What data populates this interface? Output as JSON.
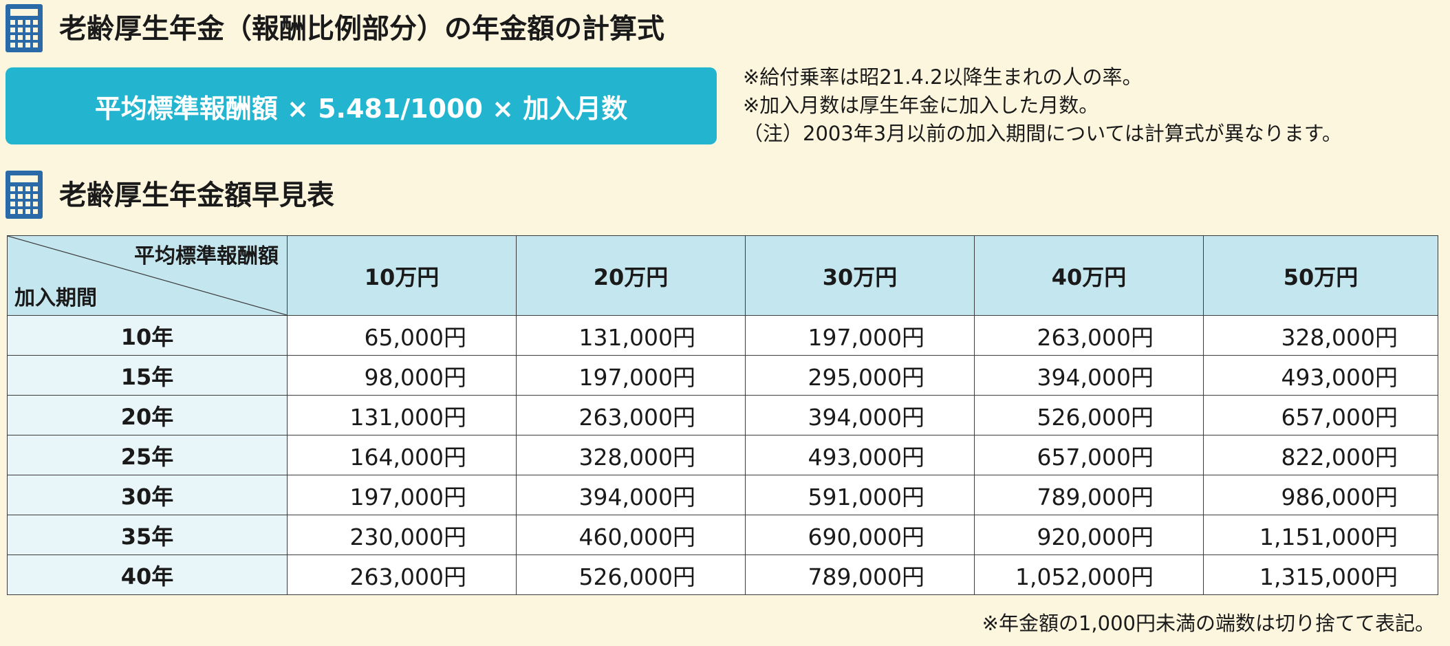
{
  "formula_section": {
    "title": "老齢厚生年金（報酬比例部分）の年金額の計算式",
    "icon": "calculator-icon",
    "formula": "平均標準報酬額 × 5.481/1000 × 加入月数",
    "notes": [
      "※給付乗率は昭21.4.2以降生まれの人の率。",
      "※加入月数は厚生年金に加入した月数。",
      "（注）2003年3月以前の加入期間については計算式が異なります。"
    ]
  },
  "table_section": {
    "title": "老齢厚生年金額早見表",
    "icon": "calculator-icon",
    "corner_top": "平均標準報酬額",
    "corner_bottom": "加入期間",
    "columns": [
      "10万円",
      "20万円",
      "30万円",
      "40万円",
      "50万円"
    ],
    "rows": [
      {
        "period": "10年",
        "values": [
          "65,000円",
          "131,000円",
          "197,000円",
          "263,000円",
          "328,000円"
        ]
      },
      {
        "period": "15年",
        "values": [
          "98,000円",
          "197,000円",
          "295,000円",
          "394,000円",
          "493,000円"
        ]
      },
      {
        "period": "20年",
        "values": [
          "131,000円",
          "263,000円",
          "394,000円",
          "526,000円",
          "657,000円"
        ]
      },
      {
        "period": "25年",
        "values": [
          "164,000円",
          "328,000円",
          "493,000円",
          "657,000円",
          "822,000円"
        ]
      },
      {
        "period": "30年",
        "values": [
          "197,000円",
          "394,000円",
          "591,000円",
          "789,000円",
          "986,000円"
        ]
      },
      {
        "period": "35年",
        "values": [
          "230,000円",
          "460,000円",
          "690,000円",
          "920,000円",
          "1,151,000円"
        ]
      },
      {
        "period": "40年",
        "values": [
          "263,000円",
          "526,000円",
          "789,000円",
          "1,052,000円",
          "1,315,000円"
        ]
      }
    ],
    "footnote": "※年金額の1,000円未満の端数は切り捨てて表記。"
  },
  "colors": {
    "background": "#fdf6de",
    "formula_box": "#23b5cf",
    "header_cell": "#c4e6ef",
    "period_cell": "#e9f6f9",
    "icon": "#2a6aa8"
  }
}
